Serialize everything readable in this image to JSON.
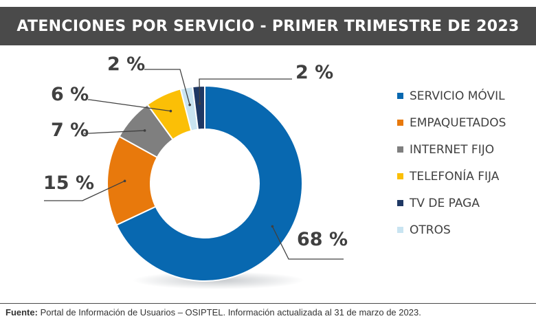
{
  "header": {
    "title": "ATENCIONES POR SERVICIO - PRIMER TRIMESTRE DE 2023"
  },
  "chart_data": {
    "type": "pie",
    "variant": "donut",
    "title": "ATENCIONES POR SERVICIO - PRIMER TRIMESTRE DE 2023",
    "legend_position": "right",
    "slices": [
      {
        "label": "SERVICIO MÓVIL",
        "value": 68,
        "value_label": "68 %",
        "color": "#0868b0"
      },
      {
        "label": "EMPAQUETADOS",
        "value": 15,
        "value_label": "15 %",
        "color": "#e8790c"
      },
      {
        "label": "INTERNET FIJO",
        "value": 7,
        "value_label": "7 %",
        "color": "#7f7f7f"
      },
      {
        "label": "TELEFONÍA FIJA",
        "value": 6,
        "value_label": "6 %",
        "color": "#fbbf06"
      },
      {
        "label": "OTROS",
        "value": 2,
        "value_label": "2 %",
        "color": "#c9e4f1"
      },
      {
        "label": "TV DE PAGA",
        "value": 2,
        "value_label": "2 %",
        "color": "#1f3864"
      }
    ],
    "legend_order": [
      "SERVICIO MÓVIL",
      "EMPAQUETADOS",
      "INTERNET FIJO",
      "TELEFONÍA FIJA",
      "TV DE PAGA",
      "OTROS"
    ]
  },
  "legend": {
    "items": [
      {
        "label": "SERVICIO MÓVIL",
        "color": "#0868b0"
      },
      {
        "label": "EMPAQUETADOS",
        "color": "#e8790c"
      },
      {
        "label": "INTERNET FIJO",
        "color": "#7f7f7f"
      },
      {
        "label": "TELEFONÍA FIJA",
        "color": "#fbbf06"
      },
      {
        "label": "TV DE PAGA",
        "color": "#1f3864"
      },
      {
        "label": "OTROS",
        "color": "#c9e4f1"
      }
    ]
  },
  "footer": {
    "source_label": "Fuente:",
    "source_text": " Portal de Información de Usuarios – OSIPTEL. Información actualizada al 31 de marzo de 2023."
  }
}
